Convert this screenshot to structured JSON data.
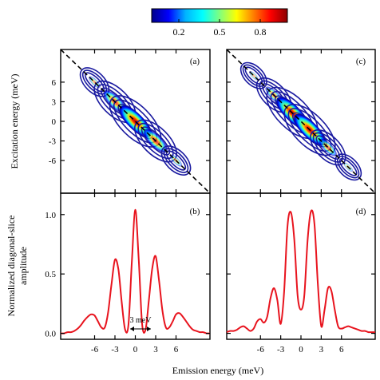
{
  "colorbar": {
    "ticks": [
      "0.2",
      "0.5",
      "0.8"
    ],
    "tick_values": [
      0.2,
      0.5,
      0.8
    ],
    "range": [
      0.0,
      1.0
    ],
    "colormap": [
      "#00008b",
      "#0000ff",
      "#00b4ff",
      "#00ffff",
      "#7fff7f",
      "#ffff00",
      "#ff7f00",
      "#ff0000",
      "#8b0000"
    ]
  },
  "chart_data": [
    {
      "type": "heatmap",
      "panel_label": "(a)",
      "ylabel": "Excitation energy (meV)",
      "yticks": [
        6,
        3,
        0,
        -3,
        -6
      ],
      "x_range": [
        -11,
        11
      ],
      "y_range": [
        -11,
        11
      ],
      "diagonal_line": "dashed, black",
      "contour_color": "#1a1aa0",
      "peak_positions": [
        -6,
        -3,
        0,
        3,
        6
      ],
      "peak_amplitudes": [
        0.15,
        0.63,
        1.0,
        0.65,
        0.16
      ]
    },
    {
      "type": "heatmap",
      "panel_label": "(c)",
      "ylabel": "",
      "yticks": [],
      "x_range": [
        -11,
        11
      ],
      "y_range": [
        -11,
        11
      ],
      "diagonal_line": "dashed, black",
      "contour_color": "#1a1aa0",
      "peak_positions": [
        -7,
        -4,
        -1.3,
        1.3,
        4,
        7
      ],
      "peak_amplitudes": [
        0.05,
        0.38,
        1.0,
        1.0,
        0.4,
        0.05
      ]
    },
    {
      "type": "line",
      "panel_label": "(b)",
      "ylabel": "Normalized diagonal-slice amplitude",
      "xticks": [
        "-6",
        "-3",
        "0",
        "3",
        "6"
      ],
      "xtick_values": [
        -6,
        -3,
        0,
        3,
        6
      ],
      "yticks": [
        "0.0",
        "0.5",
        "1.0"
      ],
      "ytick_values": [
        0.0,
        0.5,
        1.0
      ],
      "x_range": [
        -11,
        11
      ],
      "y_range": [
        -0.05,
        1.18
      ],
      "color": "#e8141e",
      "annotation": "3 meV",
      "annotation_range": [
        -1.5,
        1.5
      ],
      "x": [
        -11,
        -10.5,
        -10,
        -9.5,
        -9,
        -8.5,
        -8,
        -7.5,
        -7,
        -6.5,
        -6,
        -5.5,
        -5,
        -4.5,
        -4,
        -3.5,
        -3,
        -2.5,
        -2,
        -1.5,
        -1,
        -0.5,
        0,
        0.5,
        1,
        1.5,
        2,
        2.5,
        3,
        3.5,
        4,
        4.5,
        5,
        5.5,
        6,
        6.5,
        7,
        7.5,
        8,
        8.5,
        9,
        9.5,
        10,
        10.5,
        11
      ],
      "y": [
        0.0,
        0.0,
        0.01,
        0.01,
        0.02,
        0.04,
        0.07,
        0.11,
        0.14,
        0.16,
        0.15,
        0.1,
        0.05,
        0.05,
        0.18,
        0.42,
        0.62,
        0.54,
        0.26,
        0.03,
        0.08,
        0.62,
        1.04,
        0.62,
        0.08,
        0.03,
        0.28,
        0.55,
        0.65,
        0.44,
        0.19,
        0.05,
        0.05,
        0.1,
        0.16,
        0.17,
        0.14,
        0.1,
        0.06,
        0.03,
        0.02,
        0.01,
        0.01,
        0.0,
        0.0
      ]
    },
    {
      "type": "line",
      "panel_label": "(d)",
      "ylabel": "",
      "xticks": [
        "-6",
        "-3",
        "0",
        "3",
        "6"
      ],
      "xtick_values": [
        -6,
        -3,
        0,
        3,
        6
      ],
      "yticks": [],
      "x_range": [
        -11,
        11
      ],
      "y_range": [
        -0.05,
        1.18
      ],
      "color": "#e8141e",
      "x": [
        -11,
        -10.5,
        -10,
        -9.5,
        -9,
        -8.5,
        -8,
        -7.5,
        -7,
        -6.5,
        -6,
        -5.5,
        -5,
        -4.5,
        -4,
        -3.5,
        -3,
        -2.5,
        -2,
        -1.5,
        -1,
        -0.5,
        0,
        0.5,
        1,
        1.5,
        2,
        2.5,
        3,
        3.5,
        4,
        4.5,
        5,
        5.5,
        6,
        6.5,
        7,
        7.5,
        8,
        8.5,
        9,
        9.5,
        10,
        10.5,
        11
      ],
      "y": [
        0.01,
        0.02,
        0.02,
        0.03,
        0.05,
        0.06,
        0.04,
        0.02,
        0.04,
        0.1,
        0.12,
        0.09,
        0.14,
        0.3,
        0.38,
        0.28,
        0.08,
        0.35,
        0.9,
        1.02,
        0.8,
        0.32,
        0.2,
        0.32,
        0.8,
        1.03,
        0.92,
        0.42,
        0.06,
        0.2,
        0.38,
        0.36,
        0.2,
        0.06,
        0.04,
        0.05,
        0.06,
        0.05,
        0.04,
        0.03,
        0.02,
        0.02,
        0.01,
        0.01,
        0.01
      ]
    }
  ],
  "xlabel": "Emission energy (meV)"
}
